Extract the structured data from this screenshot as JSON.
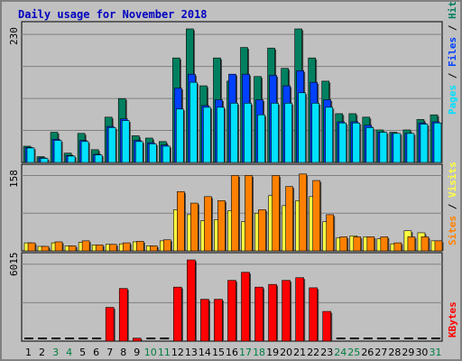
{
  "title": "Daily usage for November 2018",
  "colors": {
    "hits": "#008060",
    "files": "#0040ff",
    "pages": "#00e0ff",
    "visits": "#ffff40",
    "sites": "#ff8000",
    "kbytes": "#ff0000",
    "weekday_label": "#000000",
    "weekend_label": "#008040",
    "background": "#c0c0c0",
    "title": "#0000c0"
  },
  "chart_data": [
    {
      "type": "bar",
      "panel": "hits-files-pages",
      "ymax_label": "230",
      "ylim": [
        0,
        230
      ],
      "side_label": [
        "Pages",
        " / ",
        "Files",
        " / ",
        "Hits"
      ],
      "side_label_colors": [
        "#00e0ff",
        "#000000",
        "#0040ff",
        "#000000",
        "#008060"
      ],
      "categories": [
        "1",
        "2",
        "3",
        "4",
        "5",
        "6",
        "7",
        "8",
        "9",
        "10",
        "11",
        "12",
        "13",
        "14",
        "15",
        "16",
        "17",
        "18",
        "19",
        "20",
        "21",
        "22",
        "23",
        "24",
        "25",
        "26",
        "27",
        "28",
        "29",
        "30",
        "31"
      ],
      "series": [
        {
          "name": "Hits",
          "values": [
            28,
            10,
            52,
            16,
            50,
            22,
            78,
            110,
            46,
            42,
            36,
            180,
            230,
            132,
            180,
            140,
            198,
            148,
            197,
            162,
            230,
            180,
            140,
            84,
            84,
            78,
            56,
            52,
            56,
            74,
            82
          ]
        },
        {
          "name": "Files",
          "values": [
            26,
            8,
            40,
            12,
            38,
            14,
            62,
            75,
            38,
            34,
            30,
            128,
            152,
            98,
            108,
            152,
            152,
            108,
            150,
            132,
            158,
            138,
            108,
            70,
            70,
            64,
            52,
            50,
            50,
            68,
            70
          ]
        },
        {
          "name": "Pages",
          "values": [
            25,
            7,
            38,
            11,
            36,
            13,
            60,
            72,
            36,
            32,
            28,
            92,
            138,
            95,
            95,
            102,
            102,
            82,
            102,
            102,
            120,
            102,
            95,
            68,
            68,
            60,
            52,
            50,
            50,
            66,
            68
          ]
        }
      ]
    },
    {
      "type": "bar",
      "panel": "sites-visits",
      "ymax_label": "158",
      "ylim": [
        0,
        158
      ],
      "side_label": [
        "Sites",
        " / ",
        "Visits"
      ],
      "side_label_colors": [
        "#ff8000",
        "#000000",
        "#ffff40"
      ],
      "categories": [
        "1",
        "2",
        "3",
        "4",
        "5",
        "6",
        "7",
        "8",
        "9",
        "10",
        "11",
        "12",
        "13",
        "14",
        "15",
        "16",
        "17",
        "18",
        "19",
        "20",
        "21",
        "22",
        "23",
        "24",
        "25",
        "26",
        "27",
        "28",
        "29",
        "30",
        "31"
      ],
      "series": [
        {
          "name": "Visits",
          "values": [
            16,
            9,
            16,
            10,
            17,
            12,
            13,
            14,
            18,
            10,
            20,
            82,
            72,
            60,
            62,
            80,
            58,
            75,
            110,
            90,
            100,
            108,
            58,
            26,
            30,
            28,
            24,
            14,
            40,
            36,
            20
          ]
        },
        {
          "name": "Sites",
          "values": [
            16,
            9,
            18,
            10,
            20,
            12,
            13,
            16,
            19,
            10,
            22,
            118,
            95,
            108,
            100,
            150,
            150,
            82,
            150,
            128,
            153,
            140,
            72,
            28,
            28,
            28,
            28,
            16,
            28,
            28,
            20
          ]
        }
      ]
    },
    {
      "type": "bar",
      "panel": "kbytes",
      "ymax_label": "6015",
      "ylim": [
        0,
        6015
      ],
      "side_label": [
        "KBytes"
      ],
      "side_label_colors": [
        "#ff0000"
      ],
      "categories": [
        "1",
        "2",
        "3",
        "4",
        "5",
        "6",
        "7",
        "8",
        "9",
        "10",
        "11",
        "12",
        "13",
        "14",
        "15",
        "16",
        "17",
        "18",
        "19",
        "20",
        "21",
        "22",
        "23",
        "24",
        "25",
        "26",
        "27",
        "28",
        "29",
        "30",
        "31"
      ],
      "series": [
        {
          "name": "KBytes",
          "values": [
            0,
            0,
            0,
            0,
            0,
            0,
            2500,
            3900,
            220,
            0,
            0,
            4000,
            6015,
            3100,
            3100,
            4500,
            5100,
            4000,
            4200,
            4500,
            4700,
            3950,
            2200,
            0,
            0,
            0,
            0,
            0,
            0,
            0,
            0
          ]
        }
      ]
    }
  ],
  "x_axis": {
    "labels": [
      "1",
      "2",
      "3",
      "4",
      "5",
      "6",
      "7",
      "8",
      "9",
      "10",
      "11",
      "12",
      "13",
      "14",
      "15",
      "16",
      "17",
      "18",
      "19",
      "20",
      "21",
      "22",
      "23",
      "24",
      "25",
      "26",
      "27",
      "28",
      "29",
      "30",
      "31"
    ],
    "weekend": [
      false,
      false,
      true,
      true,
      false,
      false,
      false,
      false,
      false,
      true,
      true,
      false,
      false,
      false,
      false,
      false,
      true,
      true,
      false,
      false,
      false,
      false,
      false,
      true,
      true,
      false,
      false,
      false,
      false,
      false,
      true
    ]
  }
}
